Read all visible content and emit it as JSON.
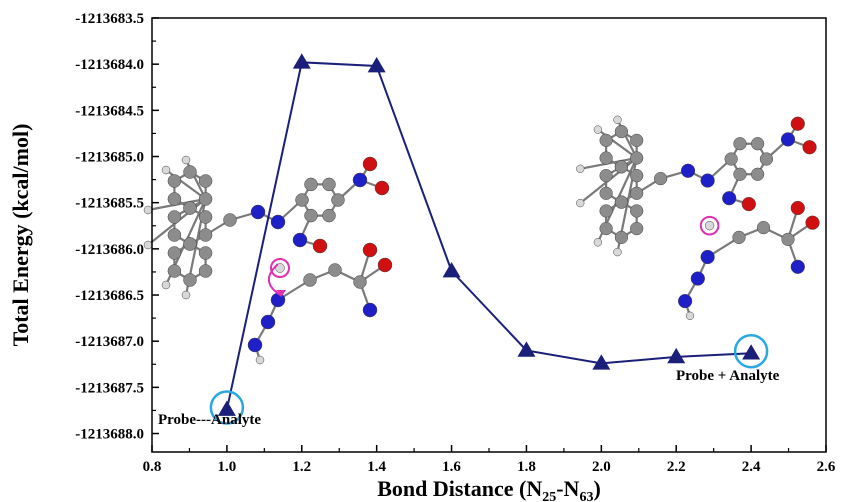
{
  "chart_data": {
    "type": "line",
    "title": "",
    "xlabel": "Bond Distance (N",
    "xlabel_sub1": "25",
    "xlabel_mid": "-N",
    "xlabel_sub2": "63",
    "xlabel_end": ")",
    "ylabel": "Total Energy (kcal/mol)",
    "xlim": [
      0.8,
      2.6
    ],
    "ylim": [
      -1213688.2,
      -1213683.5
    ],
    "xticks": [
      "0.8",
      "1.0",
      "1.2",
      "1.4",
      "1.6",
      "1.8",
      "2.0",
      "2.2",
      "2.4",
      "2.6"
    ],
    "yticks": [
      "-1213683.5",
      "-1213684.0",
      "-1213684.5",
      "-1213685.0",
      "-1213685.5",
      "-1213686.0",
      "-1213686.5",
      "-1213687.0",
      "-1213687.5",
      "-1213688.0"
    ],
    "series": [
      {
        "x": [
          1.0,
          1.2,
          1.4,
          1.6,
          1.8,
          2.0,
          2.2,
          2.4
        ],
        "y": [
          -1213687.74,
          -1213683.98,
          -1213684.02,
          -1213686.24,
          -1213687.1,
          -1213687.24,
          -1213687.17,
          -1213687.13
        ],
        "color": "#1a1f7a",
        "marker": "triangle"
      }
    ],
    "annotations": [
      {
        "text": "Probe---Analyte",
        "x": 1.0,
        "y": -1213687.74
      },
      {
        "text": "Probe + Analyte",
        "x": 2.4,
        "y": -1213687.13
      }
    ],
    "highlight_color": "#29a8e0"
  },
  "molecule_colors": {
    "carbon": "#8c8c8c",
    "hydrogen": "#d8d8d8",
    "nitrogen": "#1f1fc8",
    "oxygen": "#d01010",
    "highlight": "#e030b0"
  }
}
